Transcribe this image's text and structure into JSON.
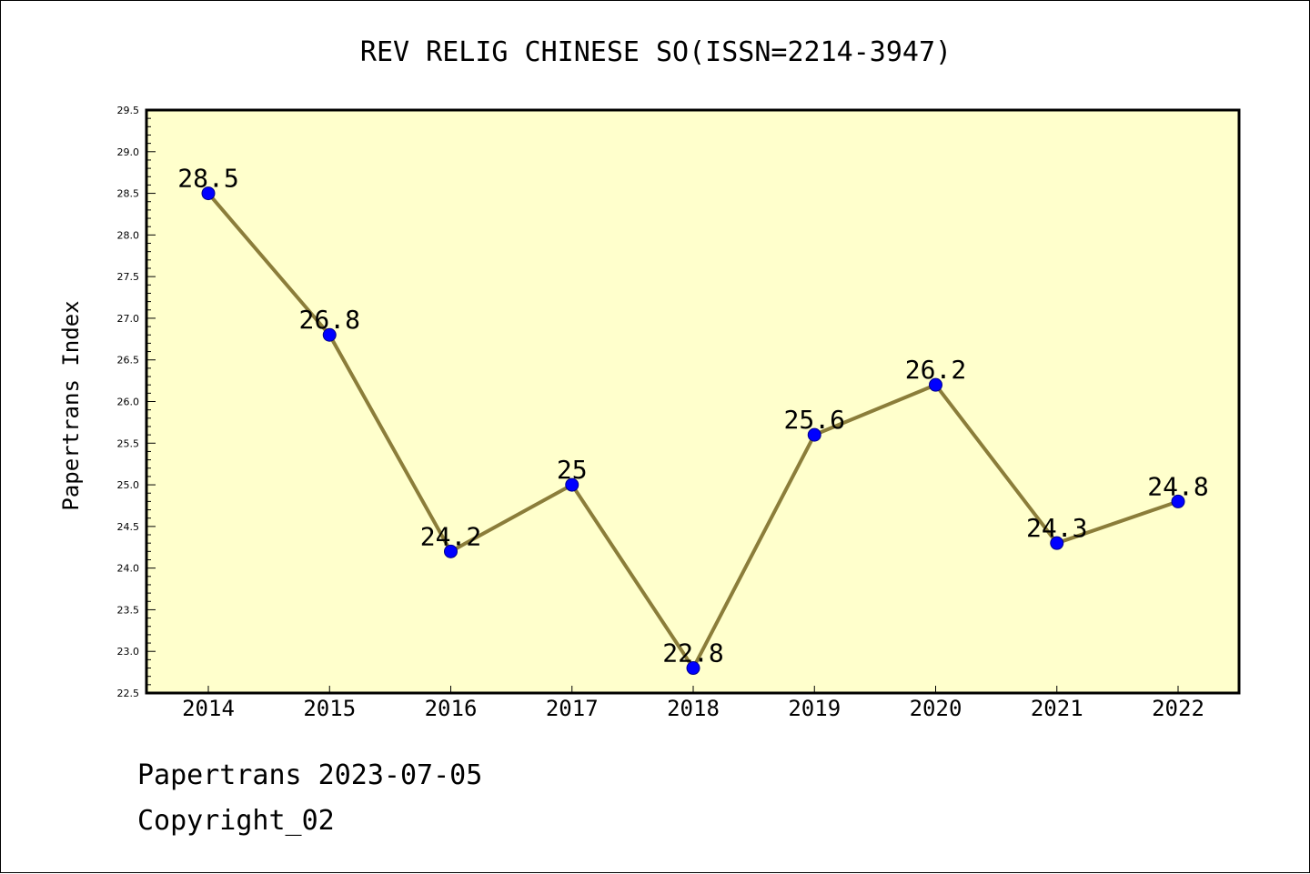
{
  "footer": {
    "line1": "Papertrans 2023-07-05",
    "line2": "Copyright_02"
  },
  "colors": {
    "plot_background": "#ffffcc",
    "line": "#8b7d3a",
    "marker": "#0000ff"
  },
  "chart_data": {
    "type": "line",
    "title": "REV RELIG CHINESE SO(ISSN=2214-3947)",
    "xlabel": "",
    "ylabel": "Papertrans Index",
    "x": [
      "2014",
      "2015",
      "2016",
      "2017",
      "2018",
      "2019",
      "2020",
      "2021",
      "2022"
    ],
    "series": [
      {
        "values": [
          28.5,
          26.8,
          24.2,
          25,
          22.8,
          25.6,
          26.2,
          24.3,
          24.8
        ],
        "labels": [
          "28.5",
          "26.8",
          "24.2",
          "25",
          "22.8",
          "25.6",
          "26.2",
          "24.3",
          "24.8"
        ]
      }
    ],
    "ylim": [
      22.5,
      29.5
    ],
    "yticks": [
      "22.5",
      "23.0",
      "23.5",
      "24.0",
      "24.5",
      "25.0",
      "25.5",
      "26.0",
      "26.5",
      "27.0",
      "27.5",
      "28.0",
      "28.5",
      "29.0",
      "29.5"
    ],
    "grid": false,
    "legend": "none"
  }
}
